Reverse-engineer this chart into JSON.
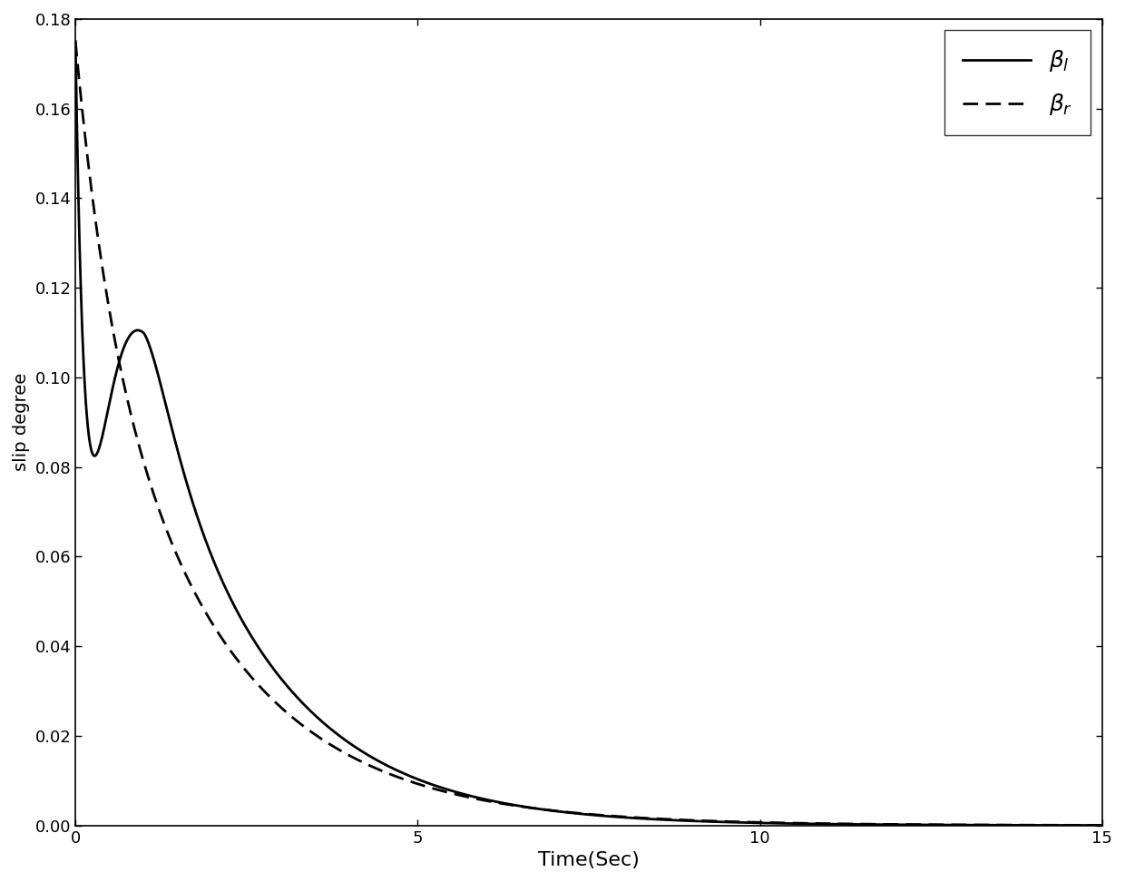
{
  "xlabel": "Time(Sec)",
  "ylabel": "slip degree",
  "xlim": [
    0,
    15
  ],
  "ylim": [
    0,
    0.18
  ],
  "xticks": [
    0,
    5,
    10,
    15
  ],
  "yticks": [
    0,
    0.02,
    0.04,
    0.06,
    0.08,
    0.1,
    0.12,
    0.14,
    0.16,
    0.18
  ],
  "legend_labels": [
    "$\\mathbf{\\mathit{\\beta_l}}$",
    "$\\mathbf{\\mathit{\\beta_r}}$"
  ],
  "line_color": "#000000",
  "background_color": "#ffffff",
  "xlabel_fontsize": 16,
  "ylabel_fontsize": 14,
  "tick_fontsize": 13,
  "legend_fontsize": 18
}
